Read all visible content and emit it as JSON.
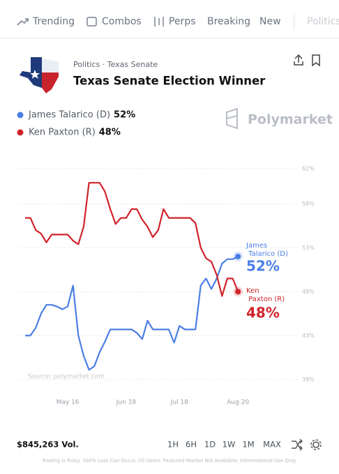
{
  "nav": {
    "items": [
      "Trending",
      "Combos",
      "Perps",
      "Breaking",
      "New",
      "Politics"
    ]
  },
  "header": {
    "breadcrumb": "Politics · Texas Senate",
    "title": "Texas Senate Election Winner",
    "brand": "Polymarket"
  },
  "chart_data": {
    "type": "line",
    "categories": [
      null,
      null,
      null,
      null,
      null,
      null,
      null,
      null,
      "May 16",
      null,
      null,
      null,
      null,
      null,
      null,
      null,
      null,
      null,
      null,
      "Jun 18",
      null,
      null,
      null,
      null,
      null,
      null,
      null,
      null,
      null,
      "Jul 18",
      null,
      null,
      null,
      null,
      null,
      null,
      null,
      null,
      null,
      null,
      "Aug 20"
    ],
    "series": [
      {
        "name": "James Talarico (D)",
        "color": "#4a7ee6",
        "last_label": "52%",
        "values": [
          43.0,
          43.0,
          43.9,
          45.5,
          46.5,
          46.5,
          46.3,
          46.0,
          46.3,
          48.7,
          43.0,
          40.7,
          39.1,
          39.5,
          41.1,
          42.3,
          43.7,
          43.7,
          43.7,
          43.7,
          43.7,
          43.3,
          42.6,
          44.7,
          43.7,
          43.7,
          43.7,
          43.7,
          42.2,
          44.1,
          43.7,
          43.7,
          43.7,
          48.7,
          49.5,
          48.3,
          49.5,
          51.2,
          51.7,
          51.7,
          52
        ]
      },
      {
        "name": "Ken Paxton (R)",
        "color": "#d0232b",
        "last_label": "48%",
        "values": [
          56.4,
          56.4,
          55.0,
          54.6,
          53.6,
          54.5,
          54.5,
          54.5,
          54.5,
          53.8,
          53.4,
          55.4,
          60.4,
          60.4,
          60.4,
          59.4,
          57.4,
          55.7,
          56.4,
          56.4,
          57.4,
          57.4,
          56.2,
          55.4,
          54.2,
          55.0,
          57.4,
          56.4,
          56.4,
          56.4,
          56.4,
          56.4,
          55.8,
          53.0,
          51.8,
          51.4,
          49.9,
          47.5,
          49.5,
          49.5,
          48
        ]
      }
    ],
    "ylim": [
      38,
      62
    ],
    "yticks": [
      {
        "value": 38,
        "label": "38%"
      },
      {
        "value": 43,
        "label": "43%"
      },
      {
        "value": 48,
        "label": "48%"
      },
      {
        "value": 53,
        "label": "53%"
      },
      {
        "value": 58,
        "label": "58%"
      },
      {
        "value": 62,
        "label": "62%"
      }
    ],
    "grid": true,
    "source": "Source: polymarket.com"
  },
  "footer": {
    "volume": "$845,263 Vol.",
    "timeframes": [
      "1H",
      "6H",
      "1D",
      "1W",
      "1M",
      "MAX"
    ],
    "disclaimer": "Trading is Risky. 100% Loss Can Occur. US Users: Featured Market Not Available; Informational Use Only."
  }
}
